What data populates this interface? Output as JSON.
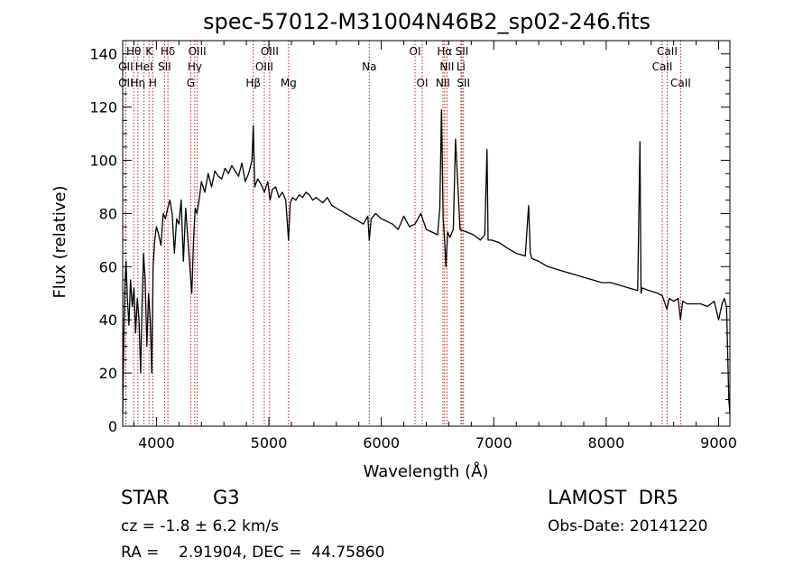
{
  "chart_data": {
    "type": "line",
    "title": "spec-57012-M31004N46B2_sp02-246.fits",
    "xlabel": "Wavelength (Å)",
    "ylabel": "Flux (relative)",
    "xlim": [
      3700,
      9100
    ],
    "ylim": [
      0,
      145
    ],
    "xticks": [
      4000,
      5000,
      6000,
      7000,
      8000,
      9000
    ],
    "yticks": [
      0,
      20,
      40,
      60,
      80,
      100,
      120,
      140
    ],
    "grid": false,
    "line_color": "#000000",
    "marker_color": "#b22222",
    "spectrum": {
      "x": [
        3700,
        3712,
        3722,
        3730,
        3742,
        3755,
        3770,
        3785,
        3800,
        3815,
        3830,
        3845,
        3860,
        3872,
        3885,
        3900,
        3915,
        3930,
        3945,
        3958,
        3970,
        3985,
        4000,
        4020,
        4040,
        4060,
        4080,
        4100,
        4120,
        4140,
        4160,
        4180,
        4200,
        4220,
        4240,
        4260,
        4280,
        4300,
        4315,
        4330,
        4345,
        4360,
        4380,
        4400,
        4430,
        4460,
        4490,
        4520,
        4550,
        4580,
        4610,
        4640,
        4670,
        4700,
        4730,
        4760,
        4790,
        4820,
        4850,
        4861,
        4875,
        4900,
        4930,
        4960,
        4990,
        5010,
        5030,
        5060,
        5090,
        5120,
        5150,
        5175,
        5190,
        5210,
        5240,
        5270,
        5300,
        5330,
        5360,
        5390,
        5420,
        5450,
        5480,
        5520,
        5560,
        5600,
        5640,
        5680,
        5720,
        5760,
        5800,
        5840,
        5880,
        5893,
        5910,
        5950,
        6000,
        6050,
        6100,
        6150,
        6200,
        6250,
        6300,
        6350,
        6400,
        6450,
        6500,
        6520,
        6535,
        6550,
        6563,
        6575,
        6590,
        6610,
        6640,
        6660,
        6700,
        6760,
        6820,
        6880,
        6920,
        6940,
        6950,
        6980,
        7050,
        7120,
        7200,
        7280,
        7310,
        7325,
        7340,
        7400,
        7480,
        7560,
        7640,
        7720,
        7800,
        7880,
        7960,
        8040,
        8120,
        8200,
        8280,
        8300,
        8310,
        8320,
        8380,
        8460,
        8500,
        8540,
        8560,
        8600,
        8640,
        8660,
        8680,
        8720,
        8780,
        8840,
        8900,
        8960,
        9000,
        9030,
        9050,
        9070,
        9090,
        9100
      ],
      "y": [
        5,
        40,
        55,
        62,
        48,
        38,
        55,
        45,
        52,
        35,
        48,
        40,
        20,
        45,
        65,
        55,
        30,
        50,
        40,
        20,
        60,
        70,
        75,
        72,
        68,
        80,
        78,
        82,
        85,
        80,
        65,
        78,
        76,
        85,
        62,
        82,
        70,
        58,
        50,
        70,
        82,
        80,
        85,
        92,
        88,
        95,
        90,
        96,
        94,
        93,
        97,
        95,
        98,
        96,
        94,
        99,
        92,
        95,
        100,
        113,
        90,
        93,
        91,
        88,
        92,
        85,
        89,
        90,
        86,
        88,
        85,
        70,
        84,
        86,
        85,
        87,
        86,
        88,
        87,
        85,
        86,
        85,
        84,
        86,
        83,
        82,
        81,
        80,
        79,
        78,
        77,
        76,
        79,
        70,
        78,
        80,
        78,
        77,
        76,
        74,
        79,
        75,
        76,
        80,
        74,
        73,
        72,
        82,
        119,
        78,
        70,
        60,
        73,
        71,
        74,
        108,
        74,
        73,
        72,
        70,
        72,
        104,
        70,
        70,
        69,
        67,
        65,
        64,
        83,
        65,
        63,
        62,
        60,
        59,
        58,
        57,
        56,
        55,
        54,
        54,
        53,
        52,
        51,
        107,
        50,
        52,
        51,
        50,
        49,
        44,
        48,
        47,
        48,
        40,
        47,
        46,
        46,
        46,
        45,
        47,
        40,
        46,
        48,
        45,
        10,
        5
      ]
    },
    "line_markers": [
      {
        "label": "Hθ",
        "wl": 3798,
        "row": 0
      },
      {
        "label": "OII",
        "wl": 3727,
        "row": 1
      },
      {
        "label": "OII",
        "wl": 3727,
        "row": 2
      },
      {
        "label": "K",
        "wl": 3934,
        "row": 0
      },
      {
        "label": "HeI",
        "wl": 3889,
        "row": 1
      },
      {
        "label": "Hη",
        "wl": 3835,
        "row": 2
      },
      {
        "label": "SII",
        "wl": 4072,
        "row": 1
      },
      {
        "label": "H",
        "wl": 3968,
        "row": 2
      },
      {
        "label": "Hδ",
        "wl": 4102,
        "row": 0
      },
      {
        "label": "OIII",
        "wl": 4363,
        "row": 0
      },
      {
        "label": "Hγ",
        "wl": 4341,
        "row": 1
      },
      {
        "label": "G",
        "wl": 4305,
        "row": 2
      },
      {
        "label": "OIII",
        "wl": 5007,
        "row": 0
      },
      {
        "label": "OIII",
        "wl": 4959,
        "row": 1
      },
      {
        "label": "Hβ",
        "wl": 4861,
        "row": 2
      },
      {
        "label": "Mg",
        "wl": 5175,
        "row": 2
      },
      {
        "label": "Na",
        "wl": 5893,
        "row": 1
      },
      {
        "label": "OI",
        "wl": 6300,
        "row": 0
      },
      {
        "label": "OI",
        "wl": 6364,
        "row": 2
      },
      {
        "label": "Hα",
        "wl": 6563,
        "row": 0
      },
      {
        "label": "NII",
        "wl": 6584,
        "row": 1
      },
      {
        "label": "NII",
        "wl": 6548,
        "row": 2
      },
      {
        "label": "SII",
        "wl": 6717,
        "row": 0
      },
      {
        "label": "Li",
        "wl": 6708,
        "row": 1
      },
      {
        "label": "SII",
        "wl": 6731,
        "row": 2
      },
      {
        "label": "CaII",
        "wl": 8542,
        "row": 0
      },
      {
        "label": "CaII",
        "wl": 8498,
        "row": 1
      },
      {
        "label": "CaII",
        "wl": 8662,
        "row": 2
      }
    ]
  },
  "info": {
    "object_class": "STAR",
    "subclass": "G3",
    "redshift_line": "cz = -1.8 ± 6.2 km/s",
    "coords_line": "RA =    2.91904, DEC =  44.75860",
    "survey": "LAMOST  DR5",
    "obs_date_line": "Obs-Date: 20141220"
  }
}
